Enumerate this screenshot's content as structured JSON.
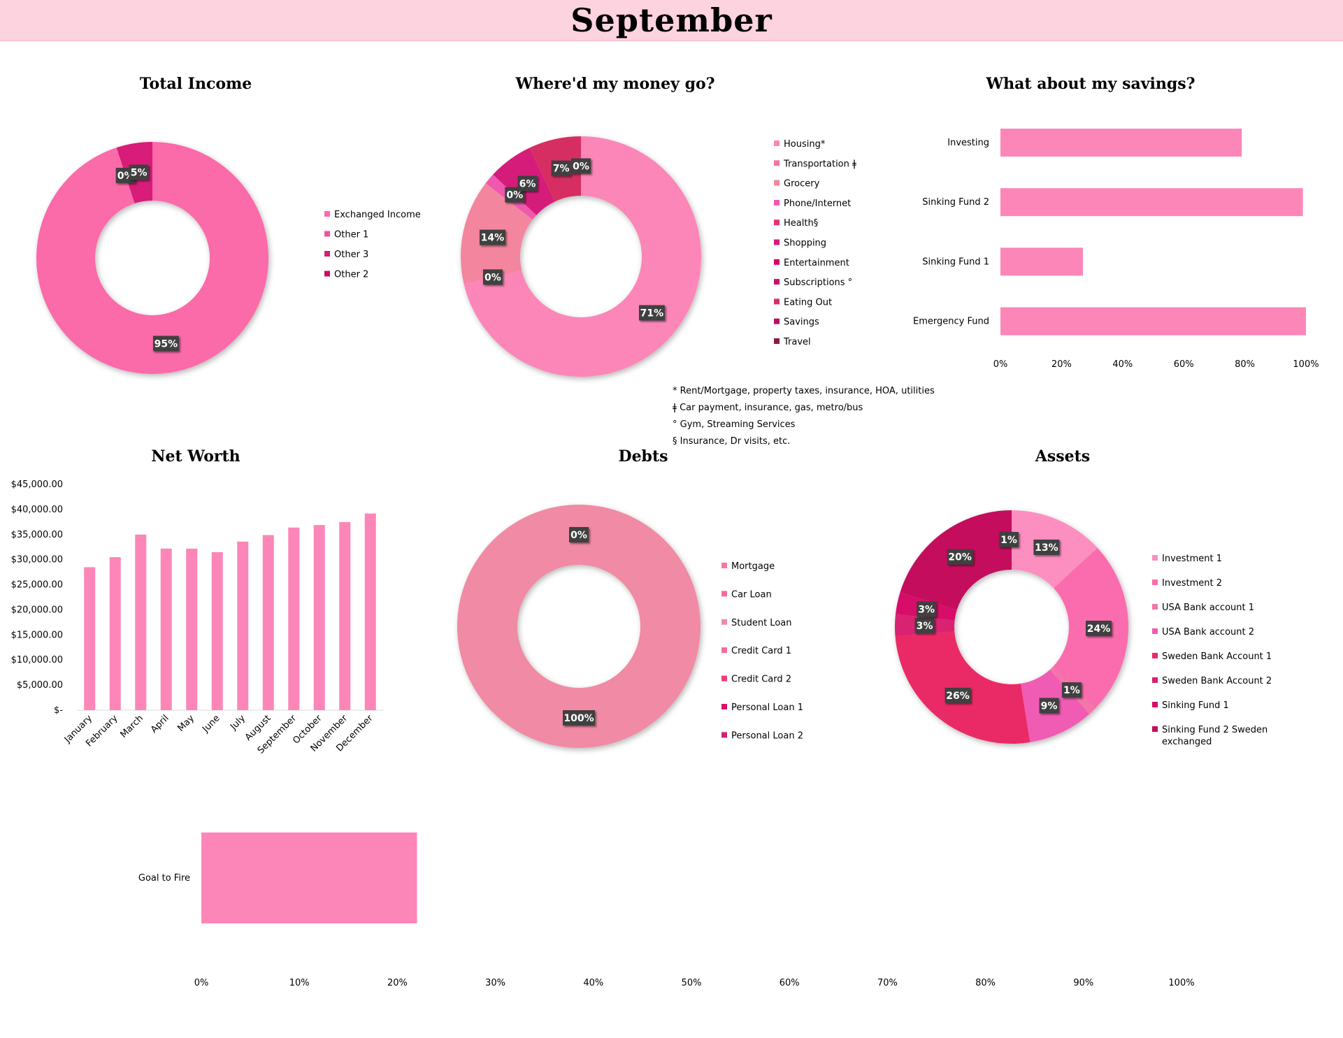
{
  "page": {
    "title": "September"
  },
  "colors": {
    "banner": "#fdd3df",
    "income": [
      "#fb6aa9",
      "#f34fa2",
      "#d81b7a",
      "#cb0e5c"
    ],
    "spending": [
      "#fc86b8",
      "#f8749f",
      "#f4859e",
      "#ee58ae",
      "#e8326f",
      "#d61a7a",
      "#d90065",
      "#c5116b",
      "#d62f63",
      "#b80f62",
      "#8a1b3c"
    ],
    "savings_bar": "#fc86b8",
    "networth_bar": "#fc86b8",
    "debts": [
      "#f37aa0",
      "#f56b9a",
      "#f08aa5",
      "#f56ca0",
      "#ec3f77",
      "#d2146b",
      "#d11f77"
    ],
    "assets": [
      "#fd8ec0",
      "#fb6cae",
      "#f474aa",
      "#f05cb4",
      "#ea2a66",
      "#da2073",
      "#d80a6b",
      "#c40c5c"
    ],
    "fire_bar": "#fc86b8",
    "data_label_bg": "#404040"
  },
  "notes": [
    "* Rent/Mortgage, property taxes, insurance, HOA, utilities",
    "ǂ Car payment, insurance, gas, metro/bus",
    "° Gym, Streaming Services",
    "§ Insurance, Dr visits, etc."
  ],
  "chart_data": [
    {
      "id": "income",
      "type": "pie",
      "title": "Total Income",
      "labels": [
        "Exchanged Income",
        "Other 1",
        "Other 3",
        "Other 2"
      ],
      "values": [
        95,
        0,
        5,
        0
      ],
      "data_labels": [
        "95%",
        "0%",
        "5%",
        ""
      ],
      "legend": "right"
    },
    {
      "id": "spending",
      "type": "pie",
      "title": "Where'd my money go?",
      "labels": [
        "Housing*",
        "Transportation ǂ",
        "Grocery",
        "Phone/Internet",
        "Health§",
        "Shopping",
        "Entertainment",
        "Subscriptions °",
        "Eating Out",
        "Savings",
        "Travel"
      ],
      "values": [
        71,
        0,
        14,
        1.5,
        0,
        6,
        0,
        0,
        7,
        0,
        0
      ],
      "data_labels": [
        "71%",
        "0%",
        "14%",
        "",
        "0%",
        "6%",
        "",
        "",
        "7%",
        "",
        "0%"
      ],
      "legend": "right"
    },
    {
      "id": "savings",
      "type": "bar",
      "orientation": "horizontal",
      "title": "What about my savings?",
      "categories": [
        "Investing",
        "Sinking Fund 2",
        "Sinking Fund 1",
        "Emergency Fund"
      ],
      "values": [
        0.79,
        0.99,
        0.27,
        1.0
      ],
      "xlim": [
        0,
        1
      ],
      "tick_labels": [
        "0%",
        "20%",
        "40%",
        "60%",
        "80%",
        "100%"
      ]
    },
    {
      "id": "networth",
      "type": "bar",
      "title": "Net Worth",
      "categories": [
        "January",
        "February",
        "March",
        "April",
        "May",
        "June",
        "July",
        "August",
        "September",
        "October",
        "November",
        "December"
      ],
      "values": [
        28500,
        30500,
        35000,
        32200,
        32200,
        31500,
        33600,
        34900,
        36400,
        36900,
        37500,
        39200
      ],
      "ylim": [
        0,
        45000
      ],
      "tick_labels": [
        "$-",
        "$5,000.00",
        "$10,000.00",
        "$15,000.00",
        "$20,000.00",
        "$25,000.00",
        "$30,000.00",
        "$35,000.00",
        "$40,000.00",
        "$45,000.00"
      ]
    },
    {
      "id": "debts",
      "type": "pie",
      "title": "Debts",
      "labels": [
        "Mortgage",
        "Car Loan",
        "Student Loan",
        "Credit Card 1",
        "Credit Card 2",
        "Personal Loan 1",
        "Personal Loan 2"
      ],
      "values": [
        0,
        0,
        100,
        0,
        0,
        0,
        0
      ],
      "data_labels": [
        "0%",
        "",
        "100%",
        "",
        "",
        "",
        ""
      ],
      "legend": "right"
    },
    {
      "id": "assets",
      "type": "pie",
      "title": "Assets",
      "labels": [
        "Investment 1",
        "Investment 2",
        "USA Bank account 1",
        "USA Bank account 2",
        "Sweden Bank Account 1",
        "Sweden Bank Account 2",
        "Sinking Fund 1",
        "Sinking Fund 2 Sweden exchanged"
      ],
      "values": [
        13,
        24,
        1,
        9,
        26,
        3,
        3,
        20
      ],
      "data_labels": [
        "13%",
        "24%",
        "1%",
        "9%",
        "26%",
        "3%",
        "3%",
        "20%"
      ],
      "extra_label": "1%",
      "legend": "right"
    },
    {
      "id": "fire",
      "type": "bar",
      "orientation": "horizontal",
      "categories": [
        "Goal to Fire"
      ],
      "values": [
        0.22
      ],
      "xlim": [
        0,
        1
      ],
      "tick_labels": [
        "0%",
        "10%",
        "20%",
        "30%",
        "40%",
        "50%",
        "60%",
        "70%",
        "80%",
        "90%",
        "100%"
      ]
    }
  ]
}
